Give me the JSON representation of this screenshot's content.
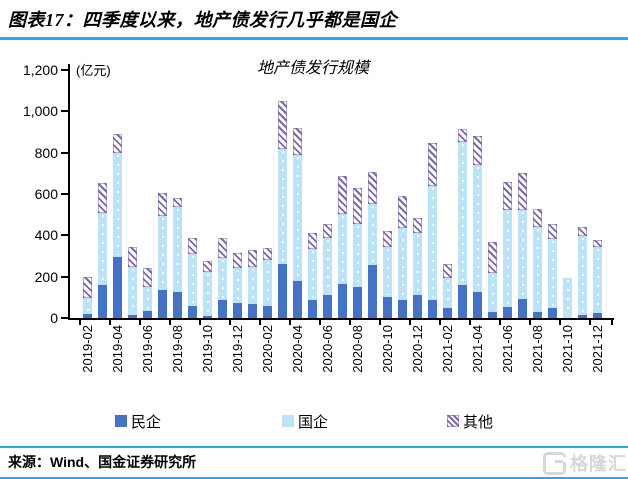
{
  "header": {
    "title": "图表17：四季度以来，地产债发行几乎都是国企"
  },
  "chart_data": {
    "type": "bar",
    "stacked": true,
    "title": "地产债发行规模",
    "unit_label": "(亿元)",
    "ylim": [
      0,
      1200
    ],
    "yticks": [
      0,
      200,
      400,
      600,
      800,
      1000,
      1200
    ],
    "ytick_labels": [
      "0",
      "200",
      "400",
      "600",
      "800",
      "1,000",
      "1,200"
    ],
    "grid": false,
    "legend_position": "bottom",
    "xtick_label_every": 2,
    "categories": [
      "2019-02",
      "2019-03",
      "2019-04",
      "2019-05",
      "2019-06",
      "2019-07",
      "2019-08",
      "2019-09",
      "2019-10",
      "2019-11",
      "2019-12",
      "2020-01",
      "2020-02",
      "2020-03",
      "2020-04",
      "2020-05",
      "2020-06",
      "2020-07",
      "2020-08",
      "2020-09",
      "2020-10",
      "2020-11",
      "2020-12",
      "2021-01",
      "2021-02",
      "2021-03",
      "2021-04",
      "2021-05",
      "2021-06",
      "2021-07",
      "2021-08",
      "2021-09",
      "2021-10",
      "2021-11",
      "2021-12"
    ],
    "series": [
      {
        "name": "民企",
        "color": "#4472C4",
        "pattern": "solid",
        "values": [
          20,
          160,
          295,
          15,
          35,
          135,
          125,
          60,
          10,
          85,
          75,
          70,
          60,
          260,
          180,
          85,
          110,
          165,
          150,
          255,
          100,
          85,
          110,
          85,
          50,
          160,
          125,
          30,
          55,
          90,
          30,
          50,
          0,
          15,
          25
        ]
      },
      {
        "name": "国企",
        "color": "#BDE3F8",
        "pattern": "solid-with-white-dots",
        "values": [
          75,
          350,
          505,
          230,
          115,
          360,
          410,
          250,
          215,
          205,
          165,
          175,
          220,
          560,
          610,
          250,
          275,
          340,
          305,
          295,
          245,
          350,
          300,
          555,
          145,
          690,
          615,
          190,
          470,
          435,
          410,
          330,
          195,
          380,
          320
        ]
      },
      {
        "name": "其他",
        "color": "#7D68A6",
        "pattern": "diagonal-hatch",
        "values": [
          105,
          145,
          90,
          100,
          90,
          110,
          45,
          75,
          50,
          95,
          75,
          85,
          60,
          230,
          130,
          75,
          70,
          180,
          175,
          155,
          75,
          155,
          75,
          205,
          65,
          65,
          140,
          150,
          135,
          175,
          90,
          75,
          0,
          45,
          35
        ]
      }
    ]
  },
  "footer": {
    "source_label": "来源：Wind、国金证券研究所",
    "logo": {
      "icon": "G",
      "text": "格隆汇"
    }
  },
  "style": {
    "accent_blue": "#29A9E1",
    "minqi_blue": "#4472C4",
    "guoqi_blue": "#BDE3F8",
    "other_purple": "#7D68A6",
    "logo_gray": "#D7D7D7"
  }
}
